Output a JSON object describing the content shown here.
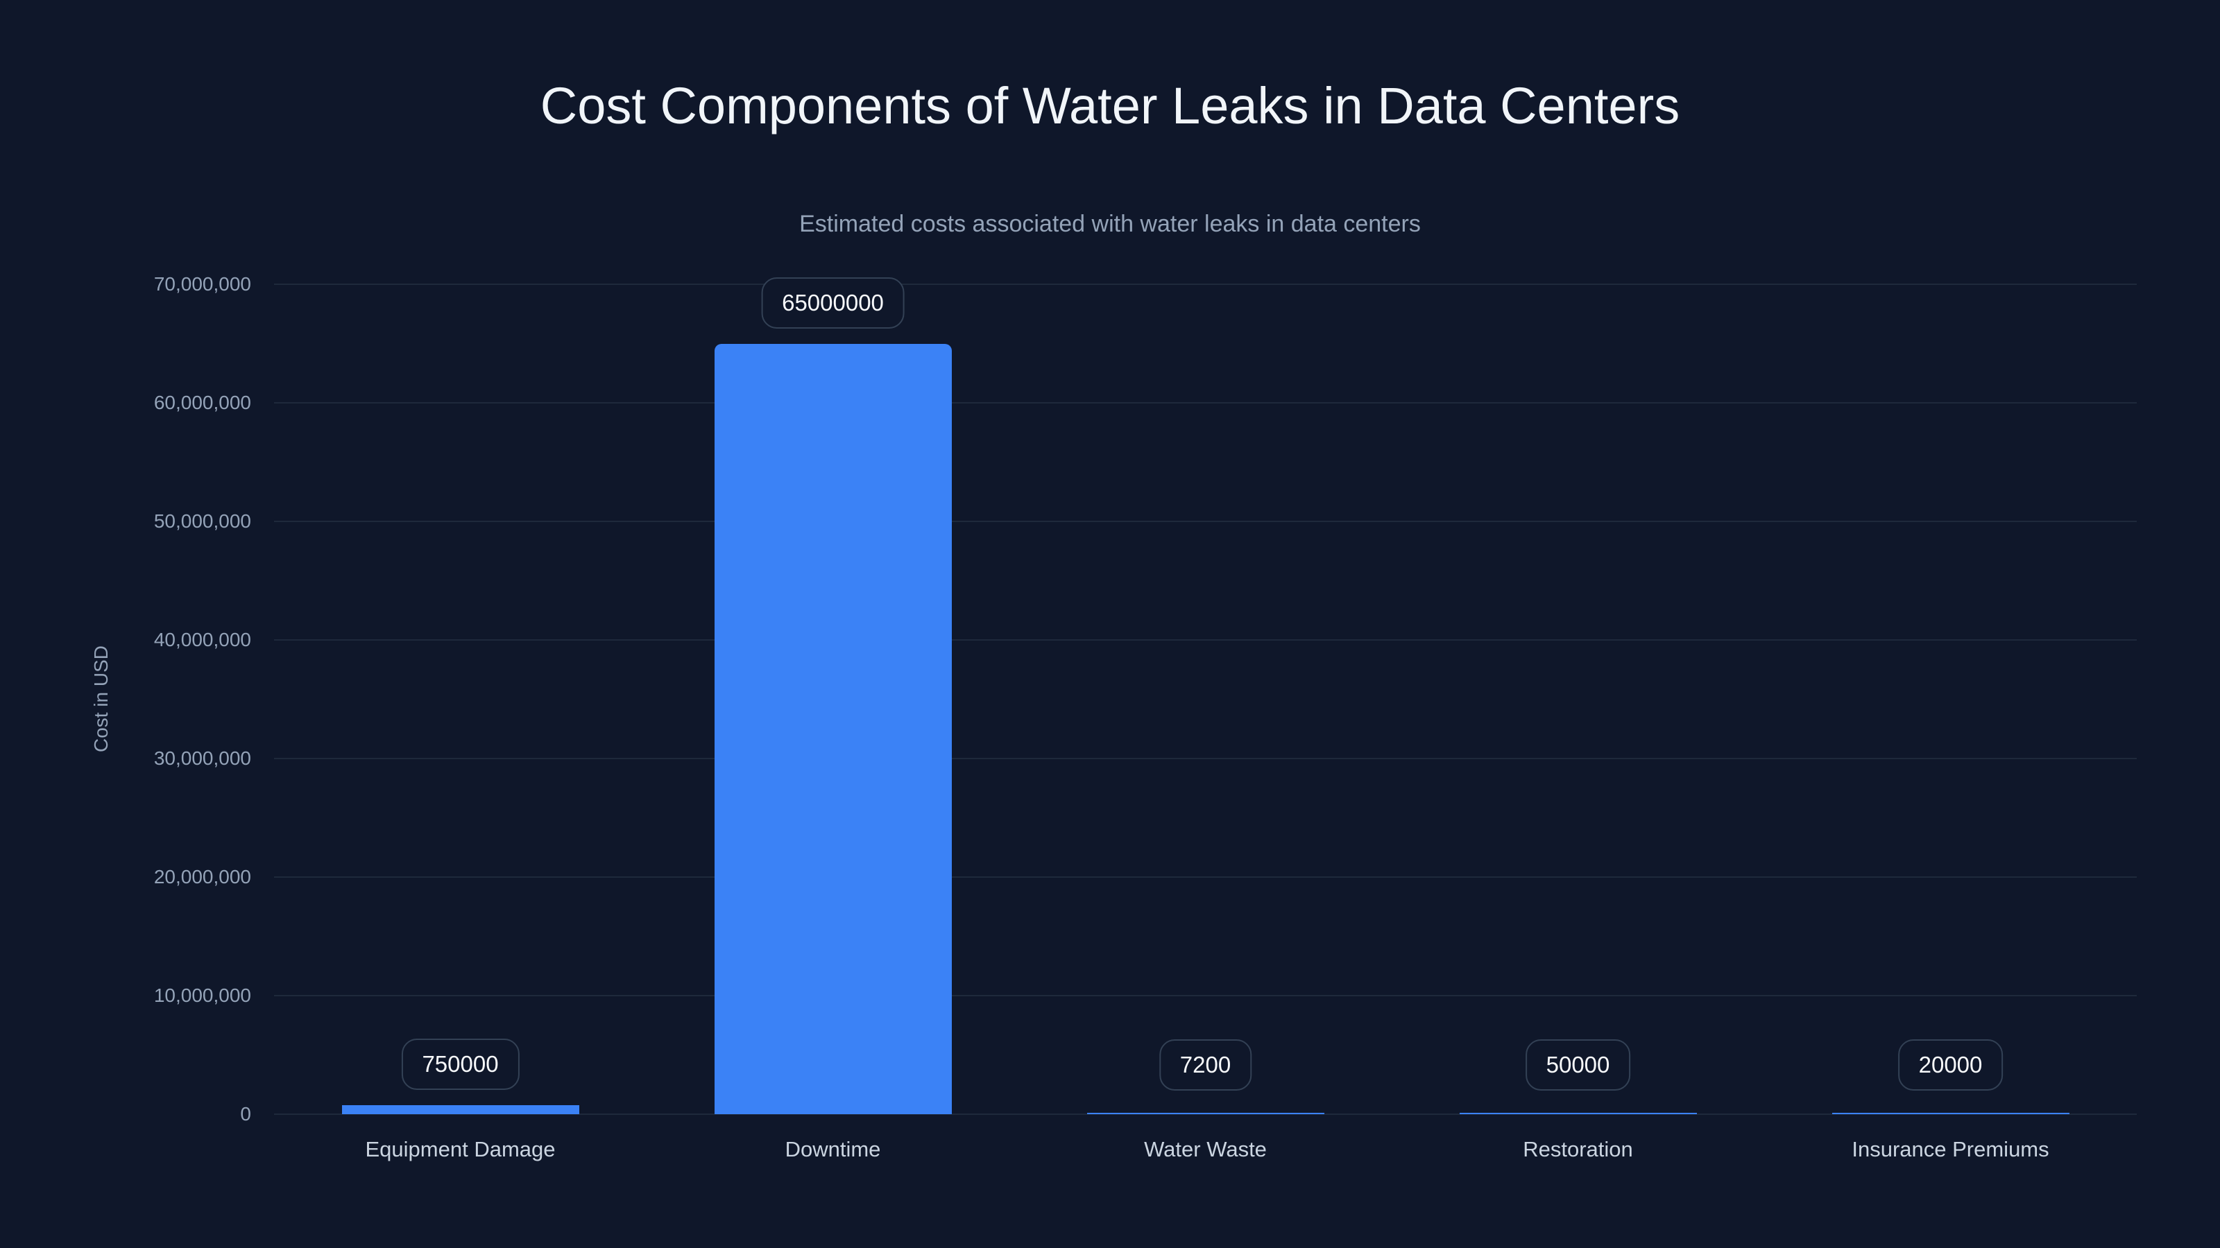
{
  "chart_data": {
    "type": "bar",
    "title": "Cost Components of Water Leaks in Data Centers",
    "subtitle": "Estimated costs associated with water leaks in data centers",
    "xlabel": "",
    "ylabel": "Cost in USD",
    "ylim": [
      0,
      70000000
    ],
    "grid": true,
    "legend": "none",
    "categories": [
      "Equipment Damage",
      "Downtime",
      "Water Waste",
      "Restoration",
      "Insurance Premiums"
    ],
    "values": [
      750000,
      65000000,
      7200,
      50000,
      20000
    ],
    "data_labels": [
      "750000",
      "65000000",
      "7200",
      "50000",
      "20000"
    ],
    "yticks": [
      "0",
      "10,000,000",
      "20,000,000",
      "30,000,000",
      "40,000,000",
      "50,000,000",
      "60,000,000",
      "70,000,000"
    ],
    "bar_color": "#3b82f6"
  }
}
